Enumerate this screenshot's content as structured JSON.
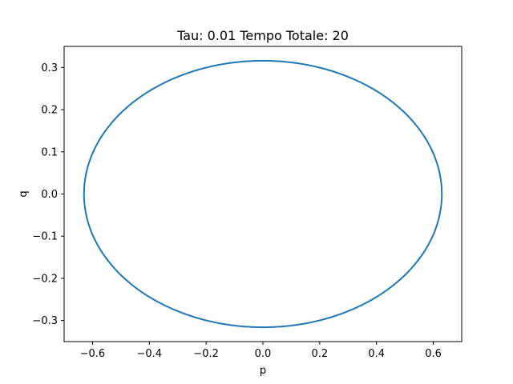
{
  "chart_data": {
    "type": "line",
    "title": "Tau: 0.01 Tempo Totale: 20",
    "xlabel": "p",
    "ylabel": "q",
    "xlim": [
      -0.7,
      0.7
    ],
    "ylim": [
      -0.35,
      0.35
    ],
    "xticks": [
      -0.6,
      -0.4,
      -0.2,
      0.0,
      0.2,
      0.4,
      0.6
    ],
    "xtick_labels": [
      "−0.6",
      "−0.4",
      "−0.2",
      "0.0",
      "0.2",
      "0.4",
      "0.6"
    ],
    "yticks": [
      -0.3,
      -0.2,
      -0.1,
      0.0,
      0.1,
      0.2,
      0.3
    ],
    "ytick_labels": [
      "−0.3",
      "−0.2",
      "−0.1",
      "0.0",
      "0.1",
      "0.2",
      "0.3"
    ],
    "grid": false,
    "series": [
      {
        "color": "#1f77b4",
        "shape": "ellipse",
        "center": [
          0.0,
          0.0
        ],
        "p_amplitude": 0.63,
        "q_amplitude": 0.316
      }
    ]
  }
}
